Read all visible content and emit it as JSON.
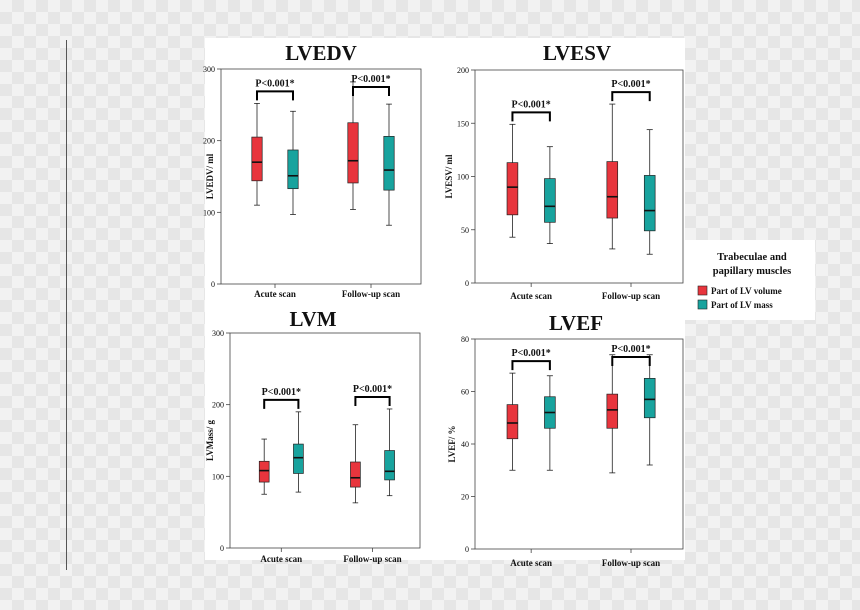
{
  "colors": {
    "volume": "#e8353d",
    "mass": "#18a39e",
    "median": "#111111",
    "frame": "#444444"
  },
  "legend": {
    "title_line1": "Trabeculae and",
    "title_line2": "papillary muscles",
    "items": [
      {
        "label": "Part of LV volume",
        "color": "#e8353d"
      },
      {
        "label": "Part of LV mass",
        "color": "#18a39e"
      }
    ]
  },
  "chart_data": [
    {
      "id": "lvedv",
      "type": "boxplot",
      "title": "LVEDV",
      "ylabel": "LVEDV/ ml",
      "ylim": [
        0,
        300
      ],
      "yticks": [
        0,
        100,
        200,
        300
      ],
      "categories": [
        "Acute scan",
        "Follow-up scan"
      ],
      "pvalues": [
        "P<0.001*",
        "P<0.001*"
      ],
      "series": [
        {
          "name": "Part of LV volume",
          "boxes": [
            {
              "min": 110,
              "q1": 144,
              "median": 170,
              "q3": 205,
              "max": 252
            },
            {
              "min": 104,
              "q1": 141,
              "median": 172,
              "q3": 225,
              "max": 282
            }
          ]
        },
        {
          "name": "Part of LV mass",
          "boxes": [
            {
              "min": 97,
              "q1": 133,
              "median": 151,
              "q3": 187,
              "max": 241
            },
            {
              "min": 82,
              "q1": 131,
              "median": 159,
              "q3": 206,
              "max": 251
            }
          ]
        }
      ]
    },
    {
      "id": "lvesv",
      "type": "boxplot",
      "title": "LVESV",
      "ylabel": "LVESV/ ml",
      "ylim": [
        0,
        200
      ],
      "yticks": [
        0,
        50,
        100,
        150,
        200
      ],
      "categories": [
        "Acute scan",
        "Follow-up scan"
      ],
      "pvalues": [
        "P<0.001*",
        "P<0.001*"
      ],
      "series": [
        {
          "name": "Part of LV volume",
          "boxes": [
            {
              "min": 43,
              "q1": 64,
              "median": 90,
              "q3": 113,
              "max": 149
            },
            {
              "min": 32,
              "q1": 61,
              "median": 81,
              "q3": 114,
              "max": 168
            }
          ]
        },
        {
          "name": "Part of LV mass",
          "boxes": [
            {
              "min": 37,
              "q1": 57,
              "median": 72,
              "q3": 98,
              "max": 128
            },
            {
              "min": 27,
              "q1": 49,
              "median": 68,
              "q3": 101,
              "max": 144
            }
          ]
        }
      ]
    },
    {
      "id": "lvm",
      "type": "boxplot",
      "title": "LVM",
      "ylabel": "LVMass/ g",
      "ylim": [
        0,
        300
      ],
      "yticks": [
        0,
        100,
        200,
        300
      ],
      "categories": [
        "Acute scan",
        "Follow-up scan"
      ],
      "pvalues": [
        "P<0.001*",
        "P<0.001*"
      ],
      "series": [
        {
          "name": "Part of LV volume",
          "boxes": [
            {
              "min": 75,
              "q1": 92,
              "median": 108,
              "q3": 121,
              "max": 152
            },
            {
              "min": 63,
              "q1": 85,
              "median": 98,
              "q3": 120,
              "max": 172
            }
          ]
        },
        {
          "name": "Part of LV mass",
          "boxes": [
            {
              "min": 78,
              "q1": 104,
              "median": 126,
              "q3": 145,
              "max": 190
            },
            {
              "min": 73,
              "q1": 95,
              "median": 107,
              "q3": 136,
              "max": 194
            }
          ]
        }
      ]
    },
    {
      "id": "lvef",
      "type": "boxplot",
      "title": "LVEF",
      "ylabel": "LVEF/ %",
      "ylim": [
        0,
        80
      ],
      "yticks": [
        0,
        20,
        40,
        60,
        80
      ],
      "categories": [
        "Acute scan",
        "Follow-up scan"
      ],
      "pvalues": [
        "P<0.001*",
        "P<0.001*"
      ],
      "series": [
        {
          "name": "Part of LV volume",
          "boxes": [
            {
              "min": 30,
              "q1": 42,
              "median": 48,
              "q3": 55,
              "max": 67
            },
            {
              "min": 29,
              "q1": 46,
              "median": 53,
              "q3": 59,
              "max": 74
            }
          ]
        },
        {
          "name": "Part of LV mass",
          "boxes": [
            {
              "min": 30,
              "q1": 46,
              "median": 52,
              "q3": 58,
              "max": 66
            },
            {
              "min": 32,
              "q1": 50,
              "median": 57,
              "q3": 65,
              "max": 74
            }
          ]
        }
      ]
    }
  ]
}
